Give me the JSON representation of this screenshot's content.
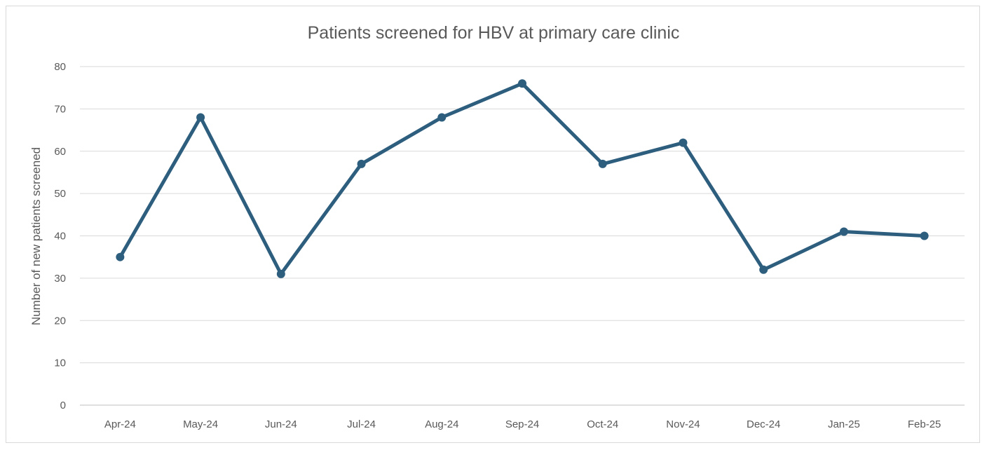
{
  "chart_data": {
    "type": "line",
    "title": "Patients screened for HBV at primary care clinic",
    "xlabel": "",
    "ylabel": "Number of new patients screened",
    "categories": [
      "Apr-24",
      "May-24",
      "Jun-24",
      "Jul-24",
      "Aug-24",
      "Sep-24",
      "Oct-24",
      "Nov-24",
      "Dec-24",
      "Jan-25",
      "Feb-25"
    ],
    "series": [
      {
        "values": [
          35,
          68,
          31,
          57,
          68,
          76,
          57,
          62,
          32,
          41,
          40
        ],
        "color": "#2e5e7e"
      }
    ],
    "ylim": [
      0,
      80
    ],
    "yticks": [
      "0",
      "10",
      "20",
      "30",
      "40",
      "50",
      "60",
      "70",
      "80"
    ],
    "grid": true,
    "legend": "none"
  }
}
